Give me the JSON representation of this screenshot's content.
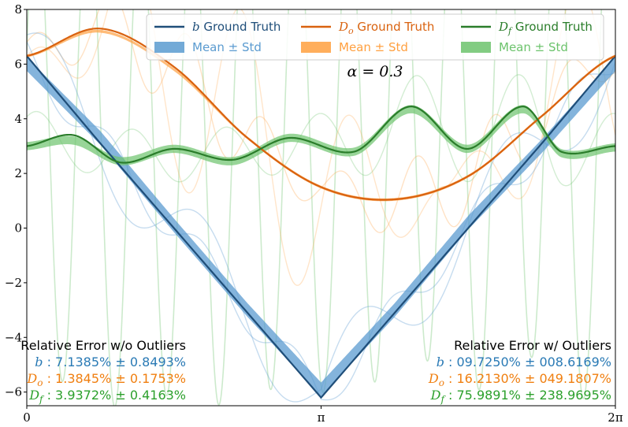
{
  "chart_data": {
    "type": "line",
    "title": "",
    "xlabel": "",
    "ylabel": "",
    "xlim": [
      0,
      6.2832
    ],
    "ylim": [
      -6.5,
      8
    ],
    "x_ticks": [
      {
        "value": 0,
        "label": "0"
      },
      {
        "value": 3.1416,
        "label": "π"
      },
      {
        "value": 6.2832,
        "label": "2π"
      }
    ],
    "y_ticks": [
      {
        "value": -6,
        "label": "−6"
      },
      {
        "value": -4,
        "label": "−4"
      },
      {
        "value": -2,
        "label": "−2"
      },
      {
        "value": 0,
        "label": "0"
      },
      {
        "value": 2,
        "label": "2"
      },
      {
        "value": 4,
        "label": "4"
      },
      {
        "value": 6,
        "label": "6"
      },
      {
        "value": 8,
        "label": "8"
      }
    ],
    "annotation": "α = 0.3",
    "colors": {
      "b_truth": "#1f4e79",
      "b_band": "#5b9bd0",
      "b_text": "#2a7ab5",
      "do_truth": "#d9620f",
      "do_band": "#ffa040",
      "do_text": "#f07f10",
      "df_truth": "#2a7d2a",
      "df_band": "#6cc36c",
      "df_text": "#2ca02c"
    },
    "series": [
      {
        "name": "b Ground Truth",
        "symbol": "b",
        "role": "ground_truth",
        "x": [
          0,
          0.785,
          1.571,
          2.356,
          3.1416,
          3.927,
          4.712,
          5.498,
          6.2832
        ],
        "y": [
          6.3,
          3.1,
          0.0,
          -3.1,
          -6.2,
          -3.1,
          0.0,
          3.1,
          6.3
        ]
      },
      {
        "name": "b Mean ± Std",
        "symbol": "b",
        "role": "mean_std",
        "x": [
          0,
          0.785,
          1.571,
          2.356,
          3.1416,
          3.927,
          4.712,
          5.498,
          6.2832
        ],
        "y": [
          6.0,
          3.3,
          0.1,
          -3.0,
          -5.9,
          -3.0,
          0.2,
          3.0,
          6.0
        ],
        "std": 0.25
      },
      {
        "name": "Do Ground Truth",
        "symbol": "Do",
        "role": "ground_truth",
        "x": [
          0,
          0.785,
          1.571,
          2.356,
          3.1416,
          3.927,
          4.712,
          5.498,
          6.2832
        ],
        "y": [
          6.3,
          7.3,
          5.9,
          3.3,
          1.5,
          1.05,
          1.9,
          4.1,
          6.3
        ]
      },
      {
        "name": "Do Mean ± Std",
        "symbol": "Do",
        "role": "mean_std",
        "x": [
          0,
          0.785,
          1.571,
          2.356,
          3.1416,
          3.927,
          4.712,
          5.498,
          6.2832
        ],
        "y": [
          6.3,
          7.2,
          5.8,
          3.3,
          1.5,
          1.05,
          1.9,
          4.1,
          6.3
        ],
        "std": 0.05
      },
      {
        "name": "Df Ground Truth",
        "symbol": "Df",
        "role": "ground_truth",
        "x": [
          0,
          0.5,
          1.0,
          1.57,
          2.2,
          2.8,
          3.5,
          4.1,
          4.7,
          5.3,
          5.7,
          6.2832
        ],
        "y": [
          3.0,
          3.4,
          2.4,
          2.9,
          2.5,
          3.3,
          2.8,
          4.45,
          2.9,
          4.45,
          2.8,
          3.0
        ]
      },
      {
        "name": "Df Mean ± Std",
        "symbol": "Df",
        "role": "mean_std",
        "x": [
          0,
          0.5,
          1.0,
          1.57,
          2.2,
          2.8,
          3.5,
          4.1,
          4.7,
          5.3,
          5.7,
          6.2832
        ],
        "y": [
          3.0,
          3.2,
          2.45,
          2.9,
          2.45,
          3.3,
          2.8,
          4.35,
          2.9,
          4.35,
          2.75,
          2.95
        ],
        "std": 0.15
      }
    ],
    "legend": {
      "placement": "top-center",
      "items": [
        {
          "symbol": "b",
          "label": "Ground Truth",
          "kind": "line",
          "color_key": "b_truth"
        },
        {
          "symbol": "Do",
          "label": "Ground Truth",
          "kind": "line",
          "color_key": "do_truth"
        },
        {
          "symbol": "Df",
          "label": "Ground Truth",
          "kind": "line",
          "color_key": "df_truth"
        },
        {
          "symbol": "",
          "label": "Mean ± Std",
          "kind": "band",
          "color_key": "b_band"
        },
        {
          "symbol": "",
          "label": "Mean ± Std",
          "kind": "band",
          "color_key": "do_band"
        },
        {
          "symbol": "",
          "label": "Mean ± Std",
          "kind": "band",
          "color_key": "df_band"
        }
      ]
    },
    "error_tables": [
      {
        "title": "Relative Error w/o Outliers",
        "placement": "bottom-left",
        "rows": [
          {
            "symbol": "b",
            "value": ": 7.1385% ± 0.8493%",
            "color_key": "b_text"
          },
          {
            "symbol": "Do",
            "value": ": 1.3845% ± 0.1753%",
            "color_key": "do_text"
          },
          {
            "symbol": "Df",
            "value": ": 3.9372% ± 0.4163%",
            "color_key": "df_text"
          }
        ]
      },
      {
        "title": "Relative Error w/  Outliers",
        "placement": "bottom-right",
        "rows": [
          {
            "symbol": "b",
            "value": ": 09.7250% ± 008.6169%",
            "color_key": "b_text"
          },
          {
            "symbol": "Do",
            "value": ": 16.2130% ± 049.1807%",
            "color_key": "do_text"
          },
          {
            "symbol": "Df",
            "value": ": 75.9891% ± 238.9695%",
            "color_key": "df_text"
          }
        ]
      }
    ]
  }
}
